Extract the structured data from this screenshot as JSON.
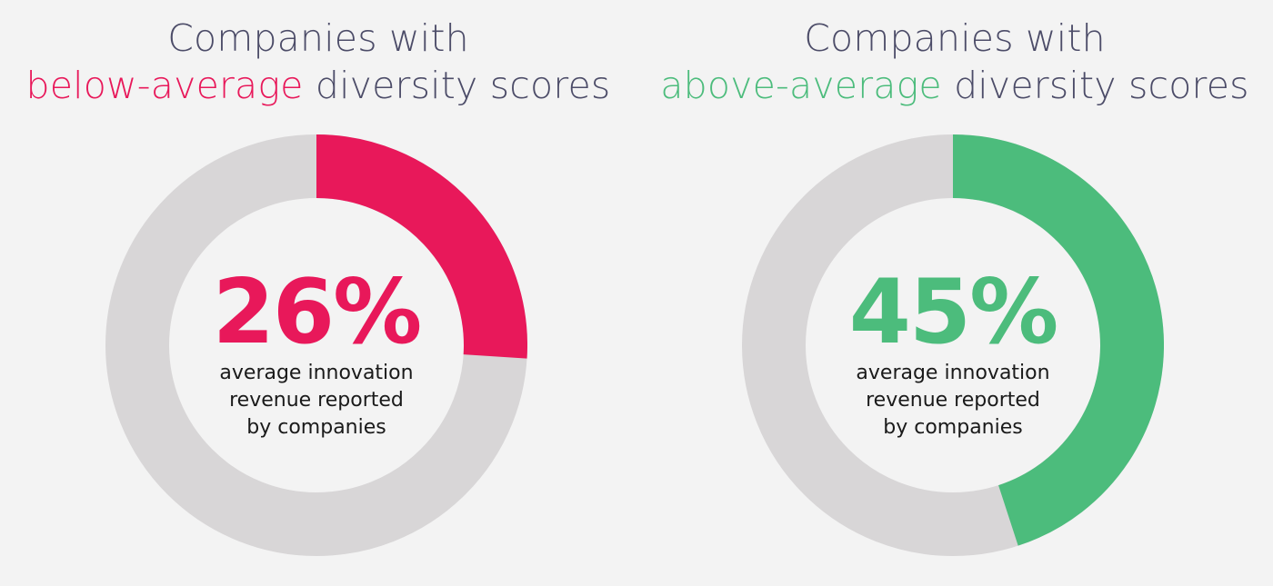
{
  "colors": {
    "background": "#f3f3f3",
    "track": "#d8d6d7",
    "title_text": "#4c4c68",
    "below": "#e8185a",
    "above": "#4cbc7c"
  },
  "chart_data": [
    {
      "type": "pie",
      "variant": "donut",
      "title_prefix": "Companies with",
      "title_highlight": "below-average",
      "title_suffix": "diversity scores",
      "value": 26,
      "value_label": "26%",
      "caption_lines": [
        "average innovation",
        "revenue reported",
        "by companies"
      ],
      "color": "#e8185a"
    },
    {
      "type": "pie",
      "variant": "donut",
      "title_prefix": "Companies with",
      "title_highlight": "above-average",
      "title_suffix": "diversity scores",
      "value": 45,
      "value_label": "45%",
      "caption_lines": [
        "average innovation",
        "revenue reported",
        "by companies"
      ],
      "color": "#4cbc7c"
    }
  ]
}
